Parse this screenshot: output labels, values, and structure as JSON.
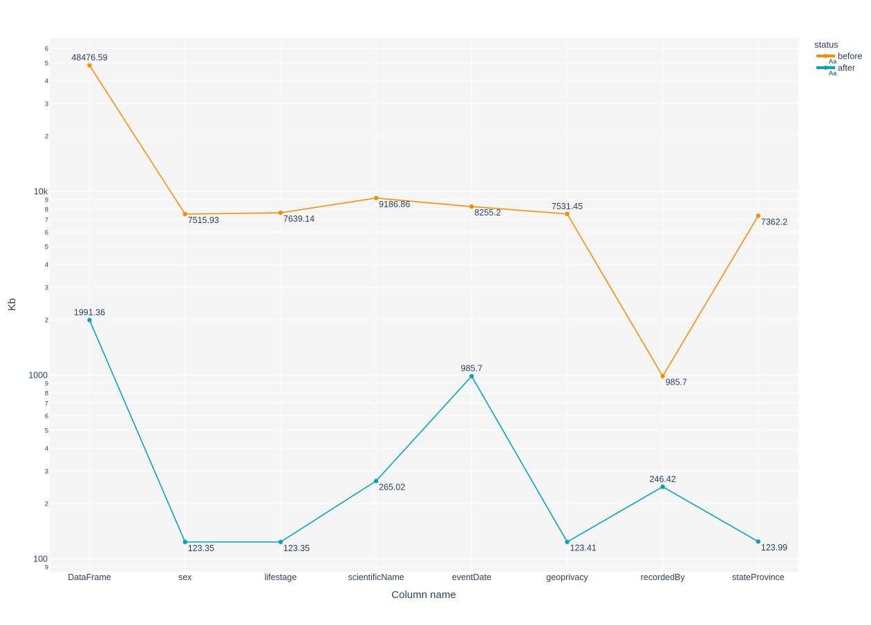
{
  "chart_data": {
    "type": "line",
    "title": "",
    "xlabel": "Column name",
    "ylabel": "Kb",
    "y_scale": "log",
    "ylim": [
      85,
      68400
    ],
    "grid": true,
    "categories": [
      "DataFrame",
      "sex",
      "lifestage",
      "scientificName",
      "eventDate",
      "geoprivacy",
      "recordedBy",
      "stateProvince"
    ],
    "y_major_ticks": [
      {
        "value": 100,
        "label": "100"
      },
      {
        "value": 1000,
        "label": "1000"
      },
      {
        "value": 10000,
        "label": "10k"
      }
    ],
    "y_minor_ticks": [
      {
        "value": 90,
        "label": "9"
      },
      {
        "value": 200,
        "label": "2"
      },
      {
        "value": 300,
        "label": "3"
      },
      {
        "value": 400,
        "label": "4"
      },
      {
        "value": 500,
        "label": "5"
      },
      {
        "value": 600,
        "label": "6"
      },
      {
        "value": 700,
        "label": "7"
      },
      {
        "value": 800,
        "label": "8"
      },
      {
        "value": 900,
        "label": "9"
      },
      {
        "value": 2000,
        "label": "2"
      },
      {
        "value": 3000,
        "label": "3"
      },
      {
        "value": 4000,
        "label": "4"
      },
      {
        "value": 5000,
        "label": "5"
      },
      {
        "value": 6000,
        "label": "6"
      },
      {
        "value": 7000,
        "label": "7"
      },
      {
        "value": 8000,
        "label": "8"
      },
      {
        "value": 9000,
        "label": "9"
      },
      {
        "value": 20000,
        "label": "2"
      },
      {
        "value": 30000,
        "label": "3"
      },
      {
        "value": 40000,
        "label": "4"
      },
      {
        "value": 50000,
        "label": "5"
      },
      {
        "value": 60000,
        "label": "6"
      }
    ],
    "legend": {
      "title": "status",
      "placement": "top-right",
      "symbol_text": "Aa"
    },
    "series": [
      {
        "name": "before",
        "color": "#ff8c00",
        "values": [
          48476.59,
          7515.93,
          7639.14,
          9186.86,
          8255.2,
          7531.45,
          985.7,
          7362.2
        ],
        "labels": [
          "48476.59",
          "7515.93",
          "7639.14",
          "9186.86",
          "8255.2",
          "7531.45",
          "985.7",
          "7362.2"
        ]
      },
      {
        "name": "after",
        "color": "#00a5bd",
        "values": [
          1991.36,
          123.35,
          123.35,
          265.02,
          985.7,
          123.41,
          246.42,
          123.99
        ],
        "labels": [
          "1991.36",
          "123.35",
          "123.35",
          "265.02",
          "985.7",
          "123.41",
          "246.42",
          "123.99"
        ]
      }
    ]
  }
}
